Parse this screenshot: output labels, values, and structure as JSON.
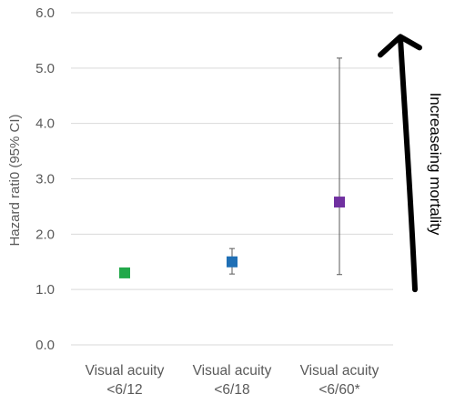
{
  "chart_data": {
    "type": "scatter",
    "ylabel": "Hazard rati0 (95% CI)",
    "ylim": [
      0,
      6
    ],
    "yticks": [
      "0.0",
      "1.0",
      "2.0",
      "3.0",
      "4.0",
      "5.0",
      "6.0"
    ],
    "grid": true,
    "categories": [
      [
        "Visual acuity",
        "<6/12"
      ],
      [
        "Visual acuity",
        "<6/18"
      ],
      [
        "Visual acuity",
        "<6/60*"
      ]
    ],
    "points": [
      {
        "value": 1.3,
        "lower": 1.3,
        "upper": 1.3,
        "color": "#22a84a"
      },
      {
        "value": 1.5,
        "lower": 1.28,
        "upper": 1.74,
        "color": "#1f6fb5"
      },
      {
        "value": 2.58,
        "lower": 1.27,
        "upper": 5.18,
        "color": "#7030a0"
      }
    ],
    "annotation": {
      "text": "Increaseing mortality",
      "arrow_from": 1.0,
      "arrow_to": 5.6
    }
  }
}
